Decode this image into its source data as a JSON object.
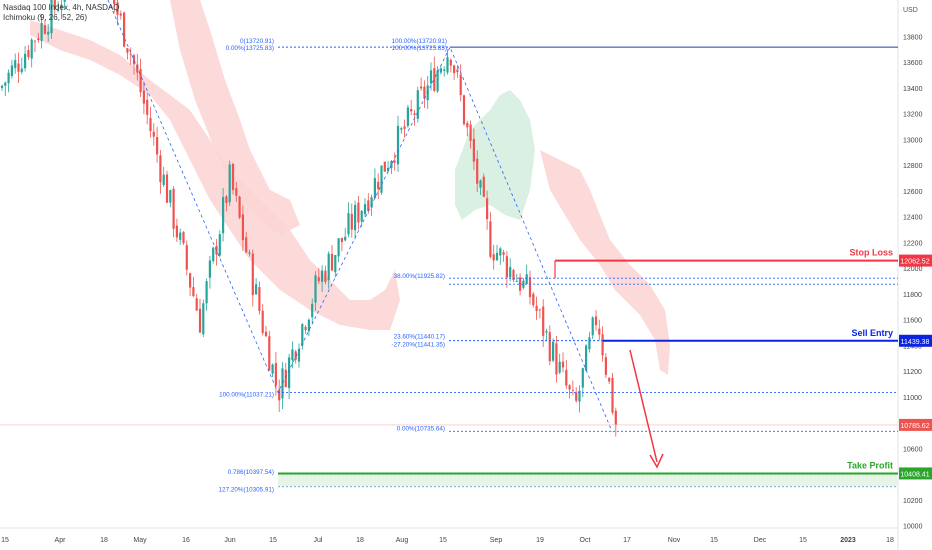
{
  "header": {
    "title": "Nasdaq 100 Index, 4h, NASDAQ",
    "indicator": "Ichimoku (9, 26, 52, 26)"
  },
  "colors": {
    "bull": "#26a69a",
    "bear": "#ef5350",
    "fib": "#2962ff",
    "stop": "#f23645",
    "entry": "#0b24e0",
    "tp": "#2ca52c",
    "cloud_red": "#fbd3d3",
    "cloud_green": "#d7efe0",
    "arrow": "#f23645"
  },
  "chart_data": {
    "type": "candlestick",
    "currency_label": "USD",
    "y_ticks": [
      10000,
      10200,
      10400,
      10600,
      10800,
      11000,
      11200,
      11400,
      11600,
      11800,
      12000,
      12200,
      12400,
      12600,
      12800,
      13000,
      13200,
      13400,
      13600,
      13800
    ],
    "x_ticks": [
      "15",
      "Apr",
      "18",
      "May",
      "16",
      "Jun",
      "15",
      "Jul",
      "18",
      "Aug",
      "15",
      "Sep",
      "19",
      "Oct",
      "17",
      "Nov",
      "15",
      "Dec",
      "15",
      "2023",
      "18"
    ],
    "approx_price_path": [
      {
        "t": "Mar 15",
        "price": 13400
      },
      {
        "t": "Mar 28",
        "price": 14500
      },
      {
        "t": "Apr 20",
        "price": 13700
      },
      {
        "t": "May 12",
        "price": 11600
      },
      {
        "t": "May 25",
        "price": 12700
      },
      {
        "t": "Jun 16",
        "price": 11037
      },
      {
        "t": "Jul 08",
        "price": 11900
      },
      {
        "t": "Jul 28",
        "price": 12600
      },
      {
        "t": "Aug 16",
        "price": 13720
      },
      {
        "t": "Sep 06",
        "price": 12200
      },
      {
        "t": "Sep 20",
        "price": 11800
      },
      {
        "t": "Sep 30",
        "price": 10900
      },
      {
        "t": "Oct 04",
        "price": 11650
      },
      {
        "t": "Oct 12",
        "price": 10735
      }
    ],
    "fib_top": [
      {
        "text": "0(13720.91)",
        "price": 13720.91
      },
      {
        "text": "0.00%(13725.83)",
        "price": 13715
      },
      {
        "text": "100.00%(13720.91)",
        "price": 13720.91
      },
      {
        "text": "100.00%(13725.83)",
        "price": 13710
      }
    ],
    "fib_levels": [
      {
        "text": "38.00%(11925.82)",
        "price": 11925.82
      },
      {
        "text": "23.60%(11440.17)",
        "price": 11440.17
      },
      {
        "text": "-27.20%(11441.35)",
        "price": 11441.35
      },
      {
        "text": "100.00%(11037.21)",
        "price": 11037.21
      },
      {
        "text": "0.00%(10735.64)",
        "price": 10735.64
      },
      {
        "text": "0.786(10397.54)",
        "price": 10397.54
      },
      {
        "text": "127.20%(10305.91)",
        "price": 10305.91
      }
    ],
    "trade_levels": [
      {
        "label": "Stop Loss",
        "price_label": "12062.52",
        "price": 12062.52
      },
      {
        "label": "Sell Entry",
        "price_label": "11439.38",
        "price": 11439.38
      },
      {
        "label": "Take Profit",
        "price_label": "10408.41",
        "price": 10408.41
      }
    ],
    "current_price_label": "10785.62",
    "current_price": 10785.62
  }
}
